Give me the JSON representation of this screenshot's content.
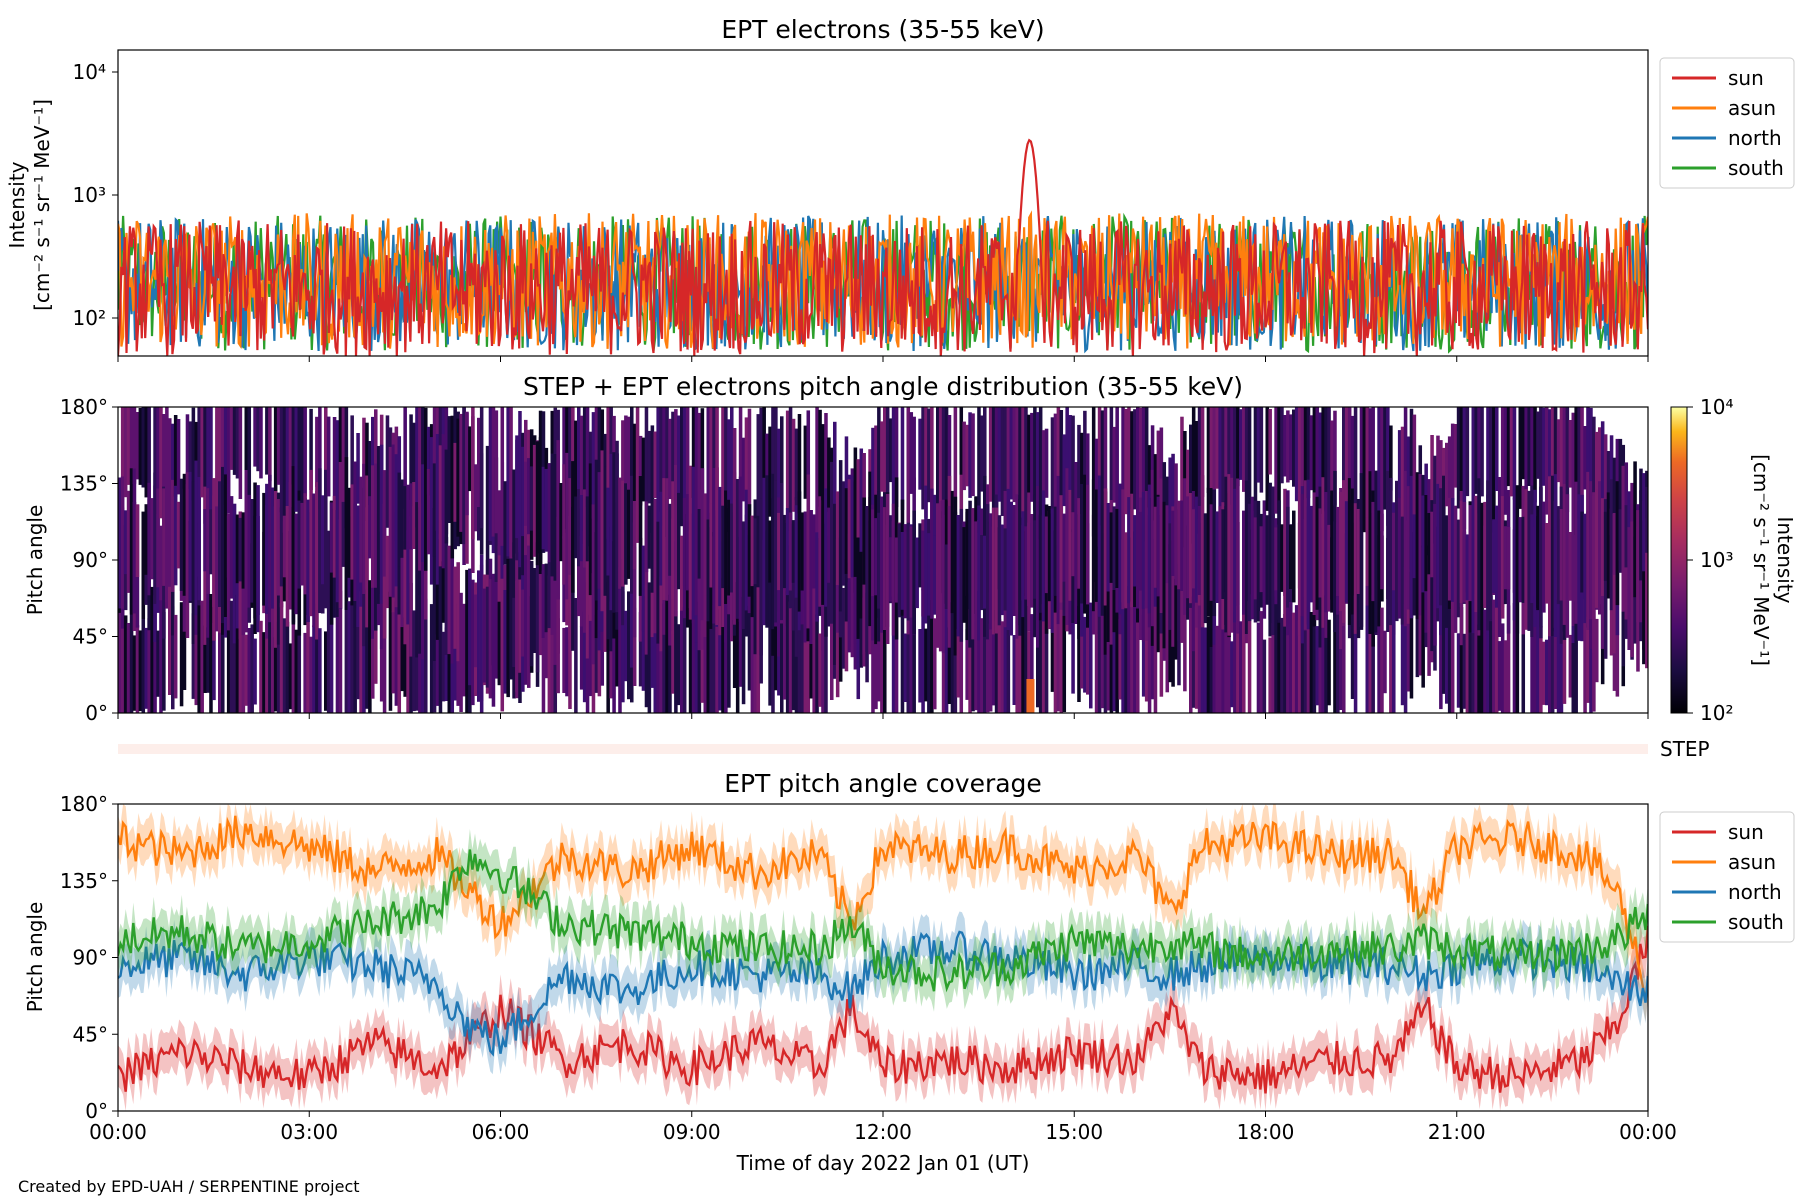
{
  "footer": {
    "credit": "Created by EPD-UAH / SERPENTINE project"
  },
  "colors": {
    "sun": "#d62728",
    "asun": "#ff7f0e",
    "north": "#1f77b4",
    "south": "#2ca02c",
    "step_band": "#fdeeea"
  },
  "xaxis": {
    "label": "Time of day 2022 Jan 01 (UT)",
    "ticks": [
      "00:00",
      "03:00",
      "06:00",
      "09:00",
      "12:00",
      "15:00",
      "18:00",
      "21:00",
      "00:00"
    ],
    "range_hours": [
      0,
      24
    ]
  },
  "panels": {
    "intensity": {
      "title": "EPT electrons (35-55 keV)",
      "ylabel_line1": "Intensity",
      "ylabel_line2": "[cm⁻² s⁻¹ sr⁻¹ MeV⁻¹]",
      "yticks": [
        "10²",
        "10³",
        "10⁴"
      ]
    },
    "pad": {
      "title": "STEP + EPT electrons pitch angle distribution (35-55 keV)",
      "ylabel": "Pitch angle",
      "yticks": [
        "0°",
        "45°",
        "90°",
        "135°",
        "180°"
      ],
      "colorbar_label_line1": "Intensity",
      "colorbar_label_line2": "[cm⁻² s⁻¹ sr⁻¹ MeV⁻¹]",
      "colorbar_ticks": [
        "10²",
        "10³",
        "10⁴"
      ]
    },
    "step": {
      "label": "STEP"
    },
    "coverage": {
      "title": "EPT pitch angle coverage",
      "ylabel": "Pitch angle",
      "yticks": [
        "0°",
        "45°",
        "90°",
        "135°",
        "180°"
      ]
    }
  },
  "chart_data": [
    {
      "type": "line",
      "title": "EPT electrons (35-55 keV)",
      "ylabel": "Intensity [cm⁻² s⁻¹ sr⁻¹ MeV⁻¹]",
      "xlabel": "Time of day 2022 Jan 01 (UT)",
      "yscale": "log",
      "ylim": [
        50,
        15000
      ],
      "xlim_hours": [
        0,
        24
      ],
      "legend": "right",
      "series": [
        {
          "name": "sun",
          "color": "#d62728",
          "typical": 200,
          "spike": {
            "hour": 14.3,
            "peak": 2800
          }
        },
        {
          "name": "asun",
          "color": "#ff7f0e",
          "typical": 230
        },
        {
          "name": "north",
          "color": "#1f77b4",
          "typical": 220
        },
        {
          "name": "south",
          "color": "#2ca02c",
          "typical": 220
        }
      ]
    },
    {
      "type": "heatmap",
      "title": "STEP + EPT electrons pitch angle distribution (35-55 keV)",
      "ylabel": "Pitch angle",
      "ylim": [
        0,
        180
      ],
      "colorscale": "inferno",
      "color_range": [
        100,
        10000
      ],
      "colorbar_label": "Intensity [cm⁻² s⁻¹ sr⁻¹ MeV⁻¹]"
    },
    {
      "type": "line",
      "title": "EPT pitch angle coverage",
      "ylabel": "Pitch angle",
      "ylim": [
        0,
        180
      ],
      "xlim_hours": [
        0,
        24
      ],
      "legend": "right",
      "series": [
        {
          "name": "sun",
          "color": "#d62728",
          "x": [
            0,
            1,
            2,
            3,
            4,
            5,
            5.5,
            6,
            7,
            8,
            9,
            10,
            11,
            11.5,
            12,
            13,
            14,
            15,
            16,
            16.5,
            17,
            18,
            19,
            20,
            20.5,
            21,
            22,
            23,
            23.5,
            24
          ],
          "y": [
            20,
            35,
            25,
            20,
            40,
            25,
            40,
            60,
            30,
            40,
            25,
            40,
            25,
            60,
            25,
            30,
            25,
            35,
            30,
            60,
            25,
            20,
            30,
            30,
            60,
            25,
            20,
            30,
            50,
            100
          ]
        },
        {
          "name": "asun",
          "color": "#ff7f0e",
          "x": [
            0,
            1,
            2,
            3,
            4,
            5,
            5.5,
            6,
            7,
            8,
            9,
            10,
            11,
            11.5,
            12,
            13,
            14,
            15,
            16,
            16.5,
            17,
            18,
            19,
            20,
            20.5,
            21,
            22,
            23,
            23.5,
            24
          ],
          "y": [
            160,
            150,
            165,
            155,
            140,
            150,
            130,
            110,
            150,
            140,
            155,
            140,
            150,
            110,
            155,
            150,
            155,
            140,
            150,
            115,
            155,
            160,
            150,
            150,
            115,
            155,
            160,
            150,
            130,
            70
          ]
        },
        {
          "name": "north",
          "color": "#1f77b4",
          "x": [
            0,
            1,
            2,
            3,
            4,
            5,
            5.5,
            6,
            7,
            8,
            9,
            10,
            11,
            11.5,
            12,
            13,
            14,
            15,
            16,
            16.5,
            17,
            18,
            19,
            20,
            20.5,
            21,
            22,
            23,
            23.5,
            24
          ],
          "y": [
            85,
            90,
            80,
            90,
            85,
            75,
            50,
            40,
            80,
            70,
            85,
            80,
            80,
            70,
            90,
            95,
            90,
            80,
            85,
            80,
            85,
            90,
            85,
            85,
            80,
            85,
            90,
            85,
            75,
            70
          ]
        },
        {
          "name": "south",
          "color": "#2ca02c",
          "x": [
            0,
            1,
            2,
            3,
            4,
            5,
            5.5,
            6,
            7,
            8,
            9,
            10,
            11,
            11.5,
            12,
            13,
            14,
            15,
            16,
            16.5,
            17,
            18,
            19,
            20,
            20.5,
            21,
            22,
            23,
            23.5,
            24
          ],
          "y": [
            100,
            105,
            95,
            100,
            110,
            120,
            150,
            140,
            110,
            105,
            100,
            95,
            95,
            110,
            85,
            80,
            85,
            100,
            95,
            100,
            95,
            90,
            95,
            95,
            100,
            95,
            90,
            95,
            100,
            115
          ]
        }
      ]
    }
  ]
}
